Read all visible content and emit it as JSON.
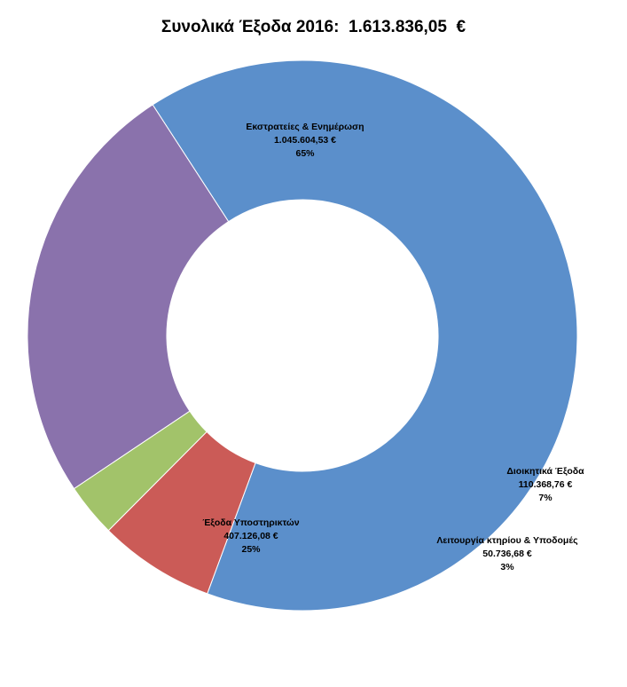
{
  "chart_data": {
    "type": "pie",
    "subtype": "donut",
    "title": "Συνολικά Έξοδα 2016:  1.613.836,05  €",
    "legend": "none",
    "slices": [
      {
        "name": "Εκστρατείες & Ενημέρωση",
        "value": 1045604.53,
        "value_label": "1.045.604,53 €",
        "percent_label": "65%",
        "color": "#5B8FCB"
      },
      {
        "name": "Διοικητικά Έξοδα",
        "value": 110368.76,
        "value_label": "110.368,76 €",
        "percent_label": "7%",
        "color": "#CB5B57"
      },
      {
        "name": "Λειτουργία κτηρίου & Υποδομές",
        "value": 50736.68,
        "value_label": "50.736,68 €",
        "percent_label": "3%",
        "color": "#A2C36A"
      },
      {
        "name": "Έξοδα Υποστηρικτών",
        "value": 407126.08,
        "value_label": "407.126,08 €",
        "percent_label": "25%",
        "color": "#8A72AC"
      }
    ]
  }
}
